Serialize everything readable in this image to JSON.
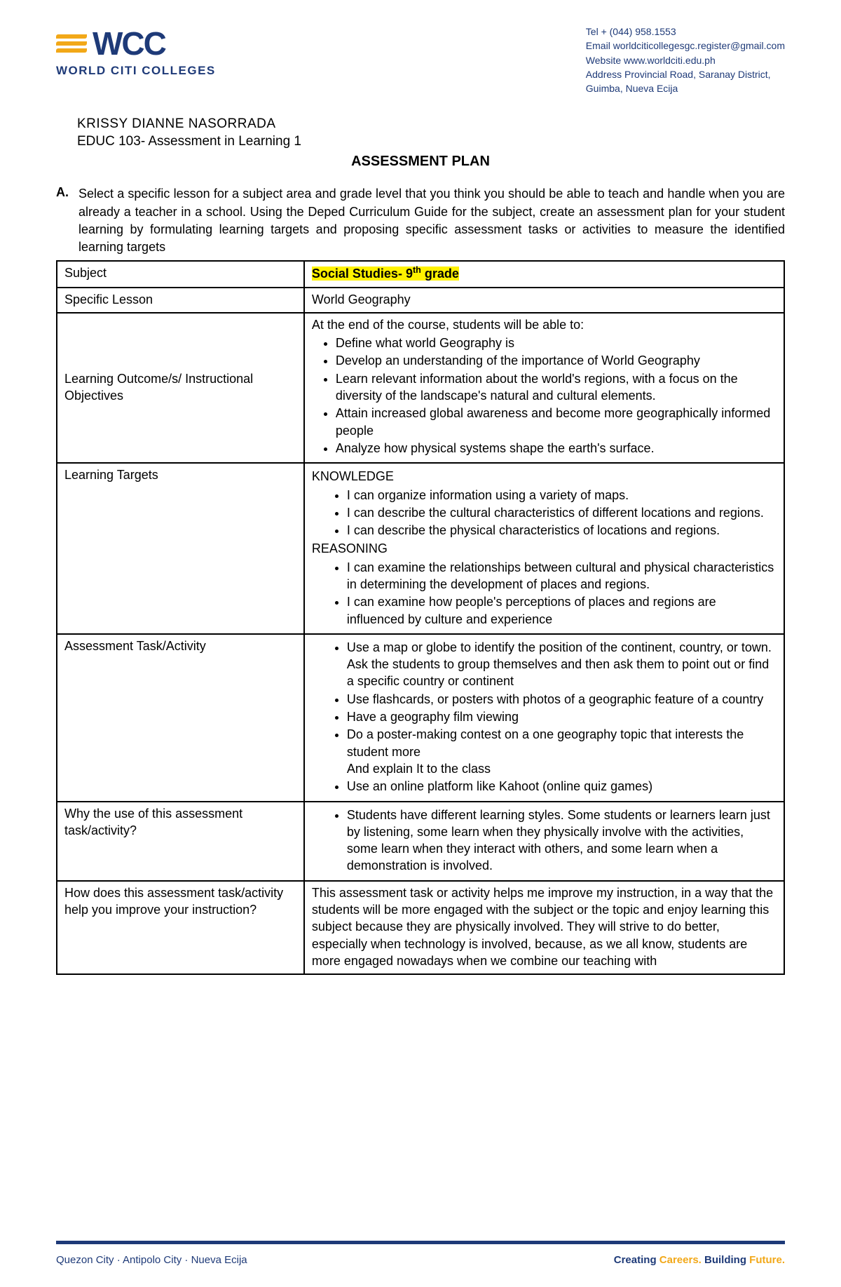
{
  "colors": {
    "brand_blue": "#1e3a78",
    "brand_orange": "#f2a818",
    "highlight": "#fff200",
    "text": "#000000",
    "bg": "#ffffff",
    "border": "#000000"
  },
  "logo": {
    "abbrev": "WCC",
    "name": "WORLD CITI COLLEGES"
  },
  "contact": {
    "tel": "Tel + (044) 958.1553",
    "email": "Email worldciticollegesgc.register@gmail.com",
    "website": "Website www.worldciti.edu.ph",
    "address1": "Address Provincial Road, Saranay District,",
    "address2": "Guimba, Nueva Ecija"
  },
  "student": {
    "name": "KRISSY DIANNE NASORRADA",
    "course": "EDUC 103- Assessment in Learning 1"
  },
  "title": "ASSESSMENT PLAN",
  "section_a": {
    "label": "A.",
    "text": "Select a specific lesson for a subject area and grade level that you think you should be able to teach and handle when you are already a teacher in a school.  Using the Deped Curriculum Guide for the subject, create an assessment plan for your student learning by formulating learning targets and proposing specific assessment tasks or activities to measure the identified learning targets"
  },
  "table": {
    "subject": {
      "label": "Subject",
      "value_prefix": "Social Studies- 9",
      "value_sup": "th",
      "value_suffix": " grade"
    },
    "lesson": {
      "label": "Specific Lesson",
      "value": "World Geography"
    },
    "outcomes": {
      "label": "Learning Outcome/s/ Instructional Objectives",
      "intro": "At the end of the course, students will be able to:",
      "items": [
        "Define what world Geography is",
        "Develop an understanding of the importance of World Geography",
        "Learn relevant information about the world's regions, with a focus on the diversity of the landscape's natural and cultural elements.",
        "Attain increased global awareness and become more geographically informed people",
        " Analyze how physical systems shape the earth's surface."
      ]
    },
    "targets": {
      "label": "Learning Targets",
      "knowledge_head": "KNOWLEDGE",
      "knowledge_items": [
        "I can organize information using a variety of maps.",
        "I can describe the cultural characteristics of different locations and regions.",
        "I can describe the physical characteristics of locations and regions."
      ],
      "reasoning_head": "REASONING",
      "reasoning_items": [
        "I can examine the relationships between cultural and physical characteristics in determining the development of places and regions.",
        "I can examine how people's perceptions of places and regions are influenced by culture and experience"
      ]
    },
    "activity": {
      "label": "Assessment Task/Activity",
      "items": [
        "Use a map or globe to identify the position of the continent, country, or town. Ask the students to group themselves and then ask them to point out or find a specific country or continent",
        "Use flashcards, or posters with photos of a geographic feature of a country",
        "Have a geography film viewing",
        "Do a poster-making contest on a one geography topic that interests the student more\nAnd explain It to the class",
        "Use an online platform like Kahoot (online quiz games)"
      ]
    },
    "why": {
      "label": "Why the use of this assessment task/activity?",
      "items": [
        "Students have different learning styles. Some students or learners learn just by listening, some learn when they physically involve with the activities, some learn when they interact with others, and some learn when a demonstration is involved."
      ]
    },
    "how": {
      "label": "How does this assessment task/activity help you improve your instruction?",
      "value": "This assessment task or activity helps me improve my instruction, in a way that the students will be more engaged with the subject or the topic and enjoy learning this subject because they are physically involved. They will strive to do better, especially when technology is involved, because, as we all know, students are more engaged nowadays when we combine our teaching with"
    }
  },
  "footer": {
    "cities": "Quezon City  ·  Antipolo City  ·  Nueva Ecija",
    "tagline_1": "Creating ",
    "tagline_2": "Careers. ",
    "tagline_3": "Building ",
    "tagline_4": "Future."
  }
}
